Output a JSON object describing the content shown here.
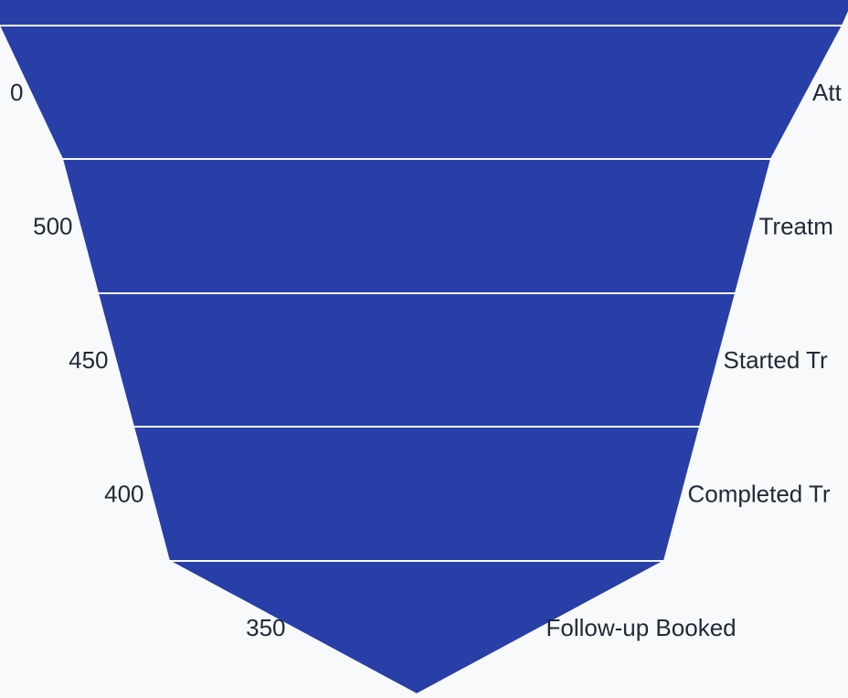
{
  "chart_data": {
    "type": "funnel",
    "bar_color": "#283fa8",
    "background_color": "#f8f9fb",
    "stages": [
      {
        "label": "",
        "value": null
      },
      {
        "label": "Att",
        "value": "0"
      },
      {
        "label": "Treatm",
        "value": "500"
      },
      {
        "label": "Started Tr",
        "value": "450"
      },
      {
        "label": "Completed Tr",
        "value": "400"
      },
      {
        "label": "Follow-up Booked",
        "value": "350"
      }
    ]
  }
}
